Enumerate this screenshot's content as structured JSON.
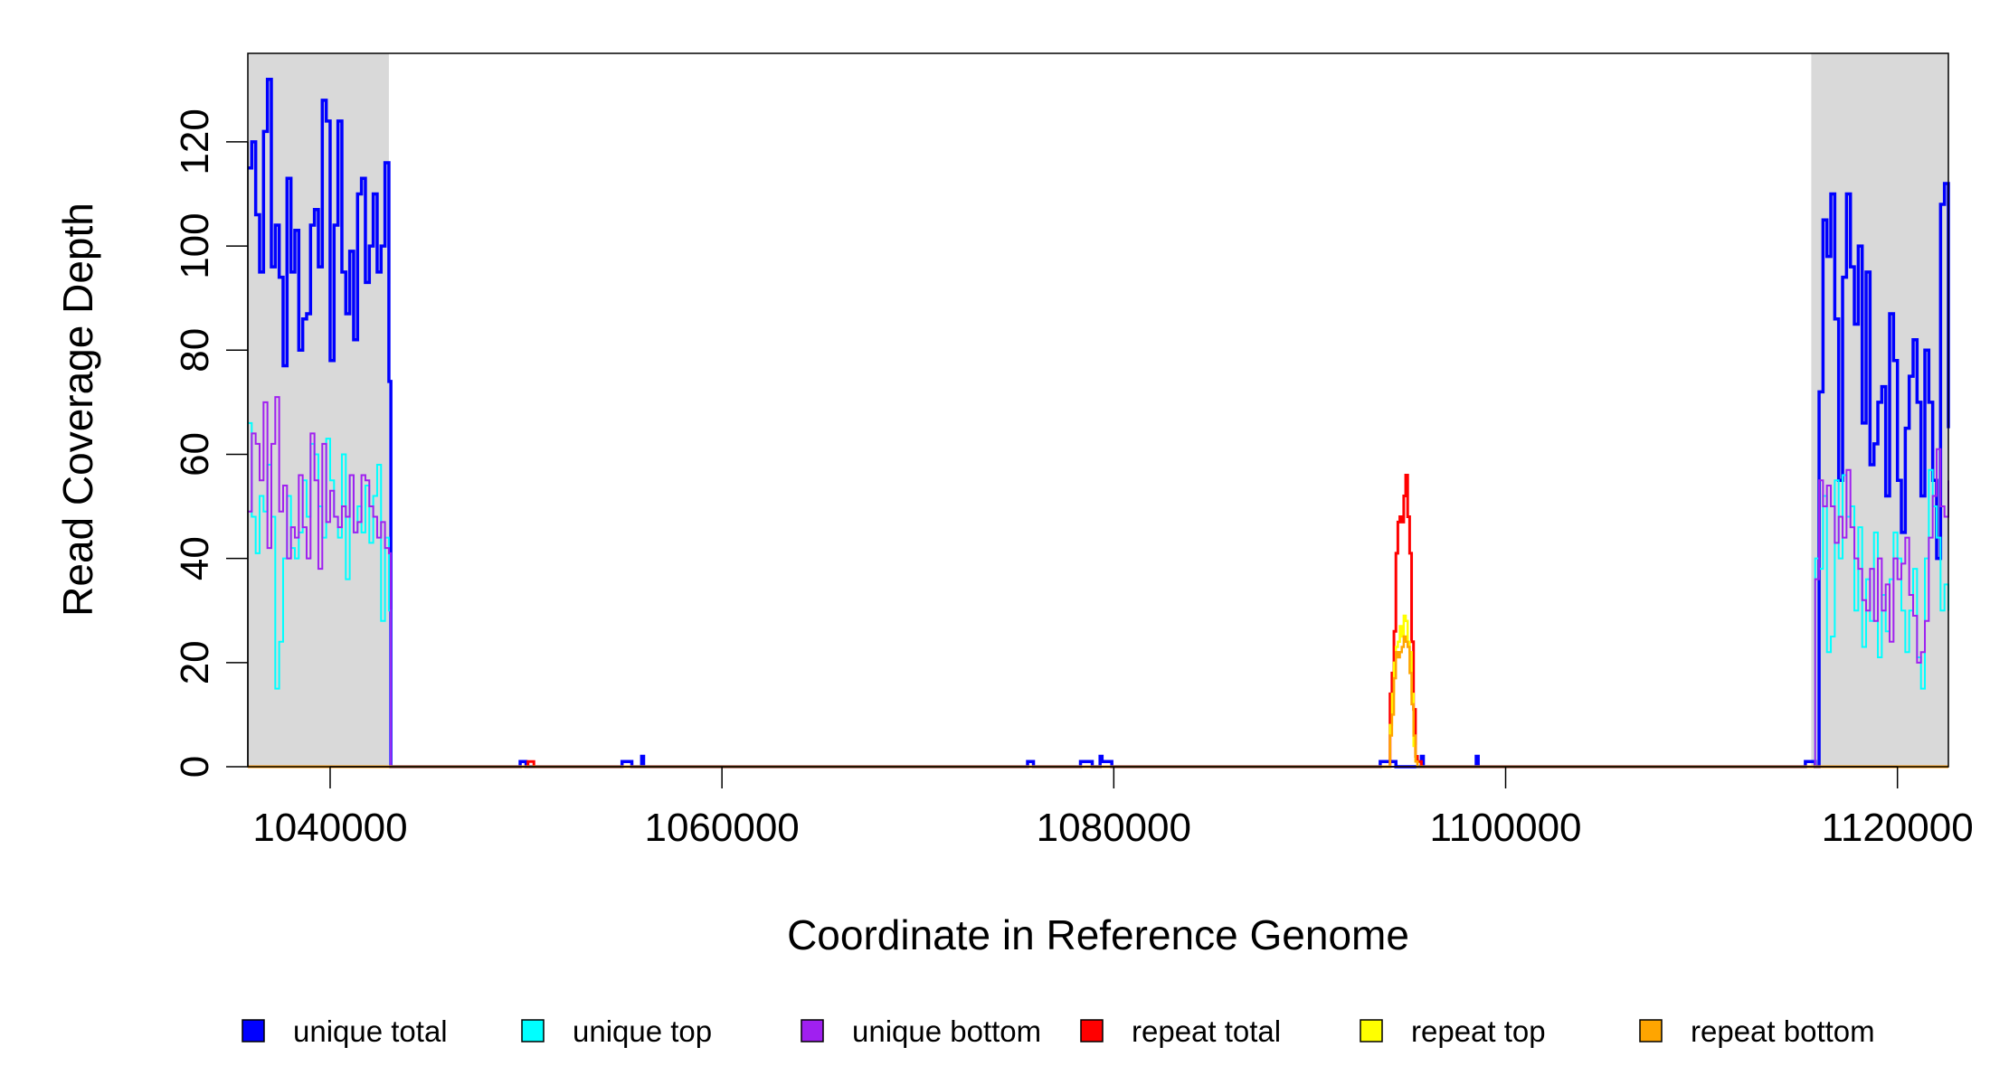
{
  "chart_data": {
    "type": "line",
    "xlabel": "Coordinate in Reference Genome",
    "ylabel": "Read Coverage Depth",
    "xlim": [
      1035800,
      1122600
    ],
    "ylim": [
      0,
      137
    ],
    "x_ticks": [
      1040000,
      1060000,
      1080000,
      1100000,
      1120000
    ],
    "x_tick_labels": [
      "1040000",
      "1060000",
      "1080000",
      "1100000",
      "1120000"
    ],
    "y_ticks": [
      0,
      20,
      40,
      60,
      80,
      100,
      120
    ],
    "y_tick_labels": [
      "0",
      "20",
      "40",
      "60",
      "80",
      "100",
      "120"
    ],
    "grid": false,
    "legend_position": "bottom",
    "shaded_regions": [
      {
        "x0": 1035800,
        "x1": 1043000,
        "color": "#d9d9d9"
      },
      {
        "x0": 1115600,
        "x1": 1122600,
        "color": "#d9d9d9"
      }
    ],
    "series": [
      {
        "name": "unique total",
        "color": "#0000ff",
        "width": 3.5,
        "x": [
          1035800,
          1036000,
          1036200,
          1036400,
          1036600,
          1036800,
          1037000,
          1037200,
          1037400,
          1037600,
          1037800,
          1038000,
          1038200,
          1038400,
          1038600,
          1038800,
          1039000,
          1039200,
          1039400,
          1039600,
          1039800,
          1040000,
          1040200,
          1040400,
          1040600,
          1040800,
          1041000,
          1041200,
          1041400,
          1041600,
          1041800,
          1042000,
          1042200,
          1042400,
          1042600,
          1042800,
          1043000,
          1043100,
          1049600,
          1049700,
          1049900,
          1050000,
          1054800,
          1054900,
          1055300,
          1055400,
          1055900,
          1056000,
          1056100,
          1075500,
          1075600,
          1075800,
          1075900,
          1078200,
          1078300,
          1078800,
          1078900,
          1079300,
          1079400,
          1079500,
          1079900,
          1080000,
          1093500,
          1093600,
          1094300,
          1094400,
          1095600,
          1095700,
          1095800,
          1098400,
          1098500,
          1098600,
          1115200,
          1115300,
          1115700,
          1115800,
          1116000,
          1116200,
          1116400,
          1116600,
          1116800,
          1117000,
          1117200,
          1117400,
          1117600,
          1117800,
          1118000,
          1118200,
          1118400,
          1118600,
          1118800,
          1119000,
          1119200,
          1119400,
          1119600,
          1119800,
          1120000,
          1120200,
          1120400,
          1120600,
          1120800,
          1121000,
          1121200,
          1121400,
          1121600,
          1121800,
          1122000,
          1122200,
          1122400,
          1122600
        ],
        "y": [
          115,
          120,
          106,
          95,
          122,
          132,
          96,
          104,
          94,
          77,
          113,
          95,
          103,
          80,
          86,
          87,
          104,
          107,
          96,
          128,
          124,
          78,
          104,
          124,
          95,
          87,
          99,
          82,
          110,
          113,
          93,
          100,
          110,
          95,
          100,
          116,
          74,
          0,
          0,
          1,
          1,
          0,
          0,
          1,
          1,
          0,
          2,
          0,
          0,
          0,
          1,
          1,
          0,
          0,
          1,
          1,
          0,
          2,
          1,
          1,
          0,
          0,
          0,
          1,
          1,
          0,
          0,
          2,
          0,
          0,
          2,
          0,
          0,
          1,
          1,
          0,
          72,
          105,
          98,
          110,
          86,
          55,
          94,
          110,
          96,
          85,
          100,
          66,
          95,
          58,
          62,
          70,
          73,
          52,
          87,
          78,
          55,
          45,
          65,
          75,
          82,
          70,
          52,
          80,
          70,
          55,
          40,
          108,
          112,
          65
        ]
      },
      {
        "name": "unique top",
        "color": "#00ffff",
        "width": 2,
        "x": [
          1035800,
          1036000,
          1036200,
          1036400,
          1036600,
          1036800,
          1037000,
          1037200,
          1037400,
          1037600,
          1037800,
          1038000,
          1038200,
          1038400,
          1038600,
          1038800,
          1039000,
          1039200,
          1039400,
          1039600,
          1039800,
          1040000,
          1040200,
          1040400,
          1040600,
          1040800,
          1041000,
          1041200,
          1041400,
          1041600,
          1041800,
          1042000,
          1042200,
          1042400,
          1042600,
          1042800,
          1043000,
          1043100,
          1115700,
          1115800,
          1116000,
          1116200,
          1116400,
          1116600,
          1116800,
          1117000,
          1117200,
          1117400,
          1117600,
          1117800,
          1118000,
          1118200,
          1118400,
          1118600,
          1118800,
          1119000,
          1119200,
          1119400,
          1119600,
          1119800,
          1120000,
          1120200,
          1120400,
          1120600,
          1120800,
          1121000,
          1121200,
          1121400,
          1121600,
          1121800,
          1122000,
          1122200,
          1122400,
          1122600
        ],
        "y": [
          66,
          48,
          41,
          52,
          49,
          58,
          48,
          15,
          24,
          40,
          52,
          42,
          40,
          45,
          55,
          48,
          62,
          60,
          50,
          44,
          63,
          55,
          48,
          44,
          60,
          36,
          56,
          45,
          50,
          45,
          54,
          43,
          52,
          58,
          28,
          44,
          30,
          0,
          0,
          40,
          38,
          52,
          22,
          25,
          55,
          40,
          56,
          48,
          50,
          30,
          46,
          23,
          36,
          28,
          45,
          21,
          33,
          26,
          36,
          45,
          40,
          30,
          22,
          30,
          38,
          21,
          15,
          40,
          57,
          50,
          44,
          30,
          35,
          30
        ]
      },
      {
        "name": "unique bottom",
        "color": "#a020f0",
        "width": 2,
        "x": [
          1035800,
          1036000,
          1036200,
          1036400,
          1036600,
          1036800,
          1037000,
          1037200,
          1037400,
          1037600,
          1037800,
          1038000,
          1038200,
          1038400,
          1038600,
          1038800,
          1039000,
          1039200,
          1039400,
          1039600,
          1039800,
          1040000,
          1040200,
          1040400,
          1040600,
          1040800,
          1041000,
          1041200,
          1041400,
          1041600,
          1041800,
          1042000,
          1042200,
          1042400,
          1042600,
          1042800,
          1043000,
          1043100,
          1115700,
          1115800,
          1116000,
          1116200,
          1116400,
          1116600,
          1116800,
          1117000,
          1117200,
          1117400,
          1117600,
          1117800,
          1118000,
          1118200,
          1118400,
          1118600,
          1118800,
          1119000,
          1119200,
          1119400,
          1119600,
          1119800,
          1120000,
          1120200,
          1120400,
          1120600,
          1120800,
          1121000,
          1121200,
          1121400,
          1121600,
          1121800,
          1122000,
          1122200,
          1122400,
          1122600
        ],
        "y": [
          49,
          64,
          62,
          55,
          70,
          42,
          62,
          71,
          49,
          54,
          40,
          46,
          44,
          56,
          46,
          40,
          64,
          55,
          38,
          62,
          47,
          53,
          48,
          46,
          50,
          48,
          56,
          45,
          47,
          56,
          55,
          50,
          48,
          44,
          47,
          42,
          41,
          0,
          0,
          36,
          55,
          50,
          54,
          50,
          43,
          48,
          44,
          57,
          46,
          40,
          38,
          32,
          30,
          38,
          28,
          40,
          30,
          35,
          24,
          40,
          36,
          39,
          44,
          33,
          29,
          20,
          22,
          28,
          44,
          52,
          61,
          50,
          48,
          55
        ]
      },
      {
        "name": "repeat total",
        "color": "#ff0000",
        "width": 3,
        "x": [
          1035800,
          1050000,
          1050100,
          1050300,
          1050400,
          1094000,
          1094100,
          1094200,
          1094300,
          1094400,
          1094500,
          1094600,
          1094700,
          1094800,
          1094900,
          1095000,
          1095100,
          1095200,
          1095300,
          1095400,
          1095500,
          1095600,
          1095700,
          1122600
        ],
        "y": [
          0,
          0,
          1,
          1,
          0,
          0,
          14,
          18,
          26,
          41,
          47,
          48,
          47,
          52,
          56,
          48,
          41,
          24,
          11,
          2,
          1,
          1,
          0,
          0
        ]
      },
      {
        "name": "repeat top",
        "color": "#ffff00",
        "width": 2.5,
        "x": [
          1035800,
          1094000,
          1094100,
          1094200,
          1094300,
          1094400,
          1094500,
          1094600,
          1094700,
          1094800,
          1094900,
          1095000,
          1095100,
          1095200,
          1095300,
          1095400,
          1095500,
          1095600,
          1122600
        ],
        "y": [
          0,
          0,
          8,
          14,
          20,
          23,
          24,
          27,
          25,
          29,
          28,
          24,
          22,
          14,
          4,
          1,
          0,
          0,
          0
        ]
      },
      {
        "name": "repeat bottom",
        "color": "#ffa500",
        "width": 2.5,
        "x": [
          1035800,
          1094000,
          1094100,
          1094200,
          1094300,
          1094400,
          1094500,
          1094600,
          1094700,
          1094800,
          1094900,
          1095000,
          1095100,
          1095200,
          1095300,
          1095400,
          1095500,
          1095600,
          1122600
        ],
        "y": [
          0,
          0,
          6,
          10,
          17,
          22,
          21,
          22,
          23,
          25,
          24,
          23,
          18,
          12,
          6,
          1,
          0,
          0,
          0
        ]
      }
    ]
  },
  "legend": {
    "items": [
      {
        "label": "unique total",
        "color": "#0000ff"
      },
      {
        "label": "unique top",
        "color": "#00ffff"
      },
      {
        "label": "unique bottom",
        "color": "#a020f0"
      },
      {
        "label": "repeat total",
        "color": "#ff0000"
      },
      {
        "label": "repeat top",
        "color": "#ffff00"
      },
      {
        "label": "repeat bottom",
        "color": "#ffa500"
      }
    ]
  }
}
